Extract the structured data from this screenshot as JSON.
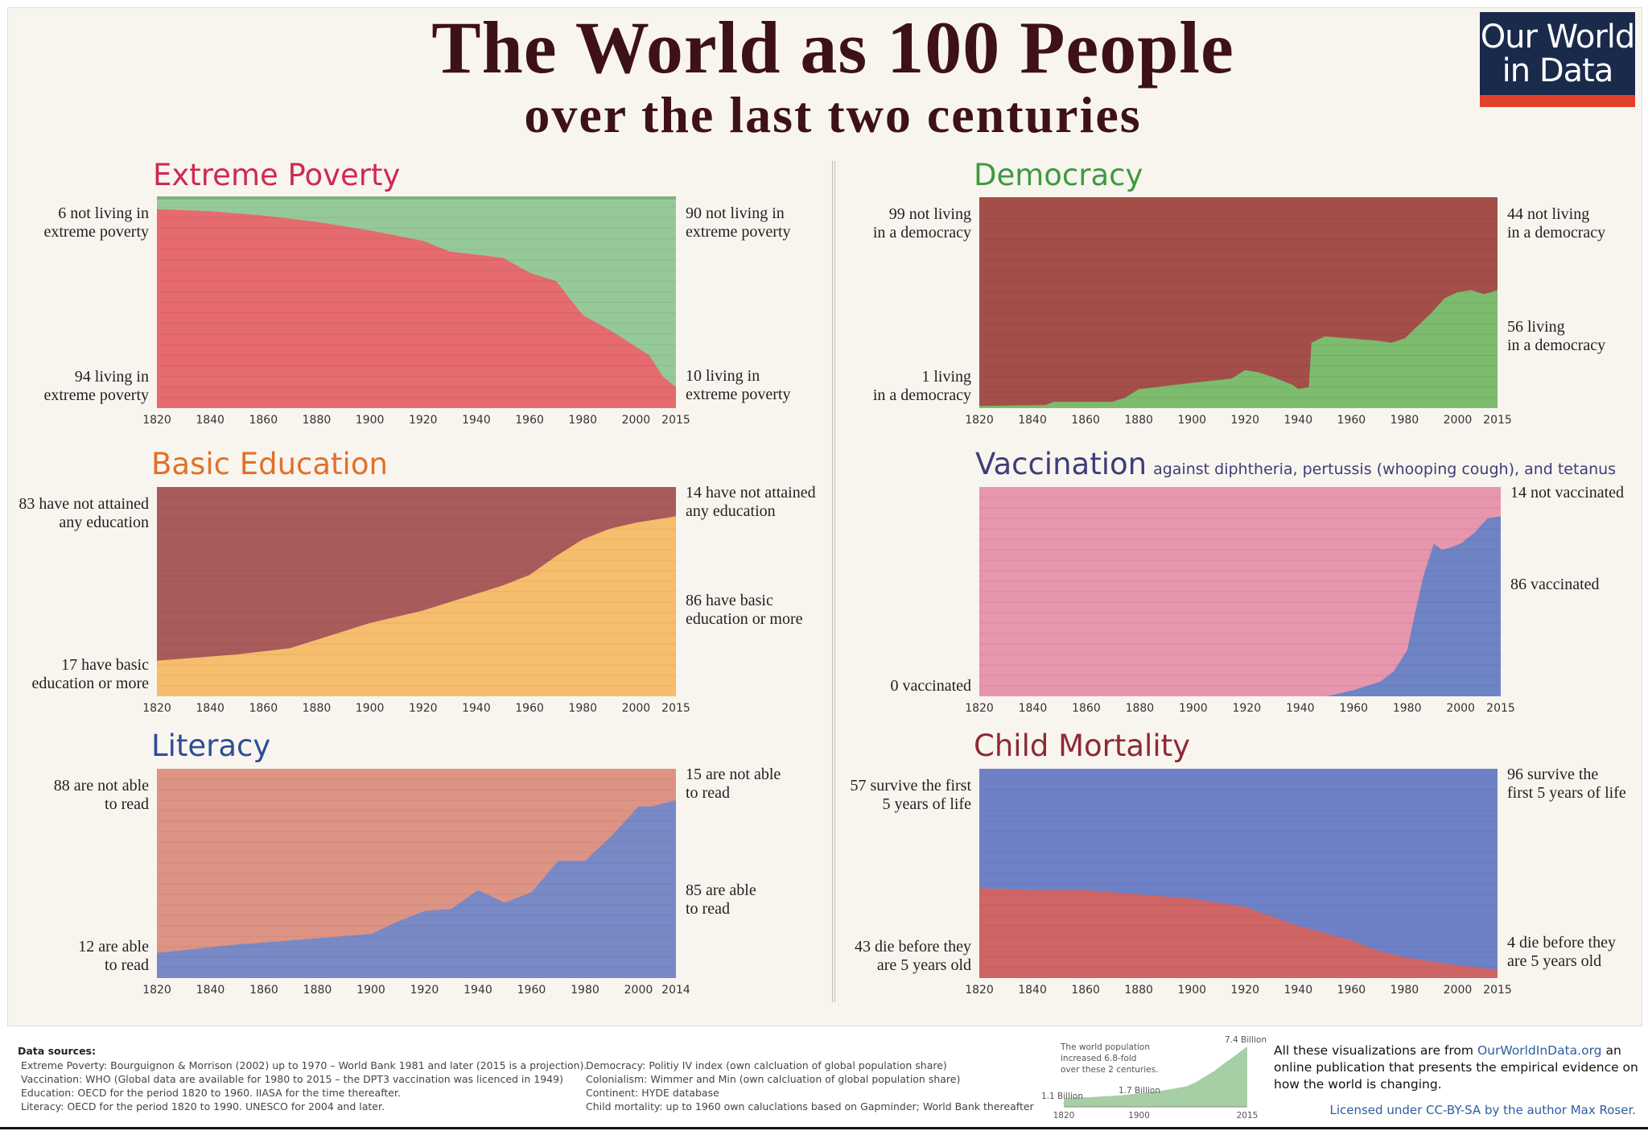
{
  "header": {
    "title": "The World as 100 People",
    "subtitle": "over the last two centuries",
    "logo_line1": "Our World",
    "logo_line2": "in Data"
  },
  "colors": {
    "title": "#3e1119",
    "logo_bg": "#1a2a4b",
    "logo_accent": "#e2402b"
  },
  "chart_data": [
    {
      "id": "poverty",
      "type": "area",
      "title": "Extreme Poverty",
      "title_color": "#cf2a4f",
      "top_color": "#96c99a",
      "bottom_color": "#e56b6f",
      "xlim": [
        1820,
        2015
      ],
      "ylim": [
        0,
        100
      ],
      "grid": true,
      "xticks": [
        "1820",
        "1840",
        "1860",
        "1880",
        "1900",
        "1920",
        "1940",
        "1960",
        "1980",
        "2000",
        "2015"
      ],
      "x": [
        1820,
        1840,
        1860,
        1880,
        1900,
        1920,
        1930,
        1950,
        1960,
        1970,
        1980,
        1990,
        2000,
        2005,
        2010,
        2015
      ],
      "values": [
        94,
        93,
        91,
        88,
        84,
        79,
        74,
        71,
        64,
        60,
        44,
        37,
        29,
        25,
        15,
        10
      ],
      "labels": {
        "left_top": [
          "6 not living in",
          "extreme poverty"
        ],
        "left_bottom": [
          "94 living in",
          "extreme poverty"
        ],
        "right_top": [
          "90 not living in",
          "extreme poverty"
        ],
        "right_bottom": [
          "10 living in",
          "extreme poverty"
        ]
      }
    },
    {
      "id": "democracy",
      "type": "area",
      "title": "Democracy",
      "title_color": "#3d9a3f",
      "top_color": "#a44e49",
      "bottom_color": "#7dbb6e",
      "xlim": [
        1820,
        2015
      ],
      "ylim": [
        0,
        100
      ],
      "grid": true,
      "xticks": [
        "1820",
        "1840",
        "1860",
        "1880",
        "1900",
        "1920",
        "1940",
        "1960",
        "1980",
        "2000",
        "2015"
      ],
      "x": [
        1820,
        1845,
        1848,
        1870,
        1875,
        1880,
        1900,
        1915,
        1920,
        1925,
        1930,
        1938,
        1940,
        1944,
        1945,
        1950,
        1960,
        1970,
        1975,
        1980,
        1990,
        1995,
        2000,
        2005,
        2010,
        2015
      ],
      "values": [
        1,
        1.5,
        3,
        3,
        5,
        9,
        12,
        14,
        18,
        17,
        15,
        11,
        9,
        10,
        31,
        34,
        33,
        32,
        31,
        33,
        45,
        52,
        55,
        56,
        54,
        56
      ],
      "labels": {
        "left_top": [
          "99 not living",
          "in a democracy"
        ],
        "left_bottom": [
          "1 living",
          "in a democracy"
        ],
        "right_top": [
          "44 not living",
          "in a democracy"
        ],
        "right_bottom": [
          "56 living",
          "in a democracy"
        ]
      }
    },
    {
      "id": "education",
      "type": "area",
      "title": "Basic Education",
      "title_color": "#e2702a",
      "top_color": "#a95b5b",
      "bottom_color": "#f6bd6c",
      "xlim": [
        1820,
        2015
      ],
      "ylim": [
        0,
        100
      ],
      "grid": true,
      "xticks": [
        "1820",
        "1840",
        "1860",
        "1880",
        "1900",
        "1920",
        "1940",
        "1960",
        "1980",
        "2000",
        "2015"
      ],
      "x": [
        1820,
        1850,
        1870,
        1900,
        1920,
        1930,
        1950,
        1960,
        1970,
        1980,
        1990,
        2000,
        2015
      ],
      "values": [
        17,
        20,
        23,
        35,
        41,
        45,
        53,
        58,
        67,
        75,
        80,
        83,
        86
      ],
      "labels": {
        "left_top": [
          "83 have not attained",
          "any education"
        ],
        "left_bottom": [
          "17 have basic",
          "education or more"
        ],
        "right_top": [
          "14 have not attained",
          "any education"
        ],
        "right_bottom": [
          "86 have basic",
          "education or more"
        ]
      }
    },
    {
      "id": "vaccination",
      "type": "area",
      "title": "Vaccination",
      "subtitle": "against diphtheria, pertussis (whooping cough), and tetanus",
      "title_color": "#3e3d7a",
      "top_color": "#e796ad",
      "bottom_color": "#6f84c4",
      "xlim": [
        1820,
        2015
      ],
      "ylim": [
        0,
        100
      ],
      "grid": true,
      "xticks": [
        "1820",
        "1840",
        "1860",
        "1880",
        "1900",
        "1920",
        "1940",
        "1960",
        "1980",
        "2000",
        "2015"
      ],
      "x": [
        1820,
        1950,
        1960,
        1970,
        1975,
        1980,
        1983,
        1986,
        1990,
        1993,
        1996,
        2000,
        2005,
        2010,
        2015
      ],
      "values": [
        0,
        0,
        3,
        7,
        12,
        22,
        40,
        57,
        73,
        70,
        71,
        73,
        78,
        85,
        86
      ],
      "labels": {
        "left_bottom": [
          "0 vaccinated"
        ],
        "right_top": [
          "14 not vaccinated"
        ],
        "right_bottom": [
          "86 vaccinated"
        ]
      }
    },
    {
      "id": "literacy",
      "type": "area",
      "title": "Literacy",
      "title_color": "#2f4c96",
      "top_color": "#dd9484",
      "bottom_color": "#7889c6",
      "xlim": [
        1820,
        2014
      ],
      "ylim": [
        0,
        100
      ],
      "grid": true,
      "xticks": [
        "1820",
        "1840",
        "1860",
        "1880",
        "1900",
        "1920",
        "1940",
        "1960",
        "1980",
        "2000",
        "2014"
      ],
      "x": [
        1820,
        1850,
        1870,
        1900,
        1910,
        1920,
        1930,
        1940,
        1950,
        1960,
        1970,
        1980,
        1990,
        2000,
        2005,
        2014
      ],
      "values": [
        12,
        16,
        18,
        21,
        27,
        32,
        33,
        42,
        36,
        41,
        56,
        56,
        68,
        82,
        82,
        85
      ],
      "labels": {
        "left_top": [
          "88 are not able",
          "to read"
        ],
        "left_bottom": [
          "12 are able",
          "to read"
        ],
        "right_top": [
          "15 are not able",
          "to read"
        ],
        "right_bottom": [
          "85 are able",
          "to read"
        ]
      }
    },
    {
      "id": "child",
      "type": "area",
      "title": "Child Mortality",
      "title_color": "#8c2a33",
      "top_color": "#6f81c6",
      "bottom_color": "#d06566",
      "xlim": [
        1820,
        2015
      ],
      "ylim": [
        0,
        100
      ],
      "grid": true,
      "xticks": [
        "1820",
        "1840",
        "1860",
        "1880",
        "1900",
        "1920",
        "1940",
        "1960",
        "1980",
        "2000",
        "2015"
      ],
      "x": [
        1820,
        1840,
        1860,
        1880,
        1900,
        1920,
        1940,
        1960,
        1970,
        1980,
        1990,
        2000,
        2015
      ],
      "values": [
        43,
        42,
        42,
        40,
        38,
        34,
        25,
        18,
        13,
        10,
        8,
        6,
        4
      ],
      "labels": {
        "left_top": [
          "57 survive the first",
          "5 years of life"
        ],
        "left_bottom": [
          "43 die before they",
          "are 5 years old"
        ],
        "right_top": [
          "96 survive the",
          "first 5 years of life"
        ],
        "right_bottom": [
          "4 die before they",
          "are 5 years old"
        ]
      }
    },
    {
      "id": "population",
      "type": "area",
      "title": "",
      "top_color": "none",
      "bottom_color": "#a6cfa6",
      "xlim": [
        1820,
        2015
      ],
      "note": [
        "The world population",
        "increased 6.8-fold",
        "over these 2 centuries."
      ],
      "xticks": [
        "1820",
        "1900",
        "2015"
      ],
      "x": [
        1820,
        1850,
        1880,
        1900,
        1920,
        1940,
        1950,
        1960,
        1970,
        1980,
        1990,
        2000,
        2015
      ],
      "values": [
        1.1,
        1.2,
        1.4,
        1.65,
        1.9,
        2.3,
        2.5,
        3.0,
        3.7,
        4.4,
        5.3,
        6.1,
        7.4
      ],
      "annotations": [
        "1.1 Billion",
        "1.7 Billion",
        "7.4 Billion"
      ]
    }
  ],
  "footer": {
    "sources_title": "Data sources:",
    "sources_left": [
      "Extreme Poverty: Bourguignon & Morrison (2002) up to 1970 – World Bank 1981 and later (2015 is a projection).",
      "Vaccination: WHO (Global data are available for 1980 to 2015 – the DPT3 vaccination was licenced in 1949)",
      "Education: OECD for the period 1820 to 1960. IIASA for the time thereafter.",
      "Literacy: OECD for the period 1820 to 1990. UNESCO for 2004 and later."
    ],
    "sources_right": [
      "Democracy: Politiy IV index (own calcluation of global population share)",
      "Colonialism: Wimmer and Min (own calcluation of global population share)",
      "Continent: HYDE database",
      "Child mortality: up to 1960 own caluclations based on Gapminder; World Bank thereafter"
    ],
    "about_pre": "All these visualizations are from ",
    "about_link": "OurWorldInData.org",
    "about_post": " an online publication that presents the empirical evidence on how the world is changing.",
    "license": "Licensed under CC-BY-SA by the author Max Roser."
  }
}
